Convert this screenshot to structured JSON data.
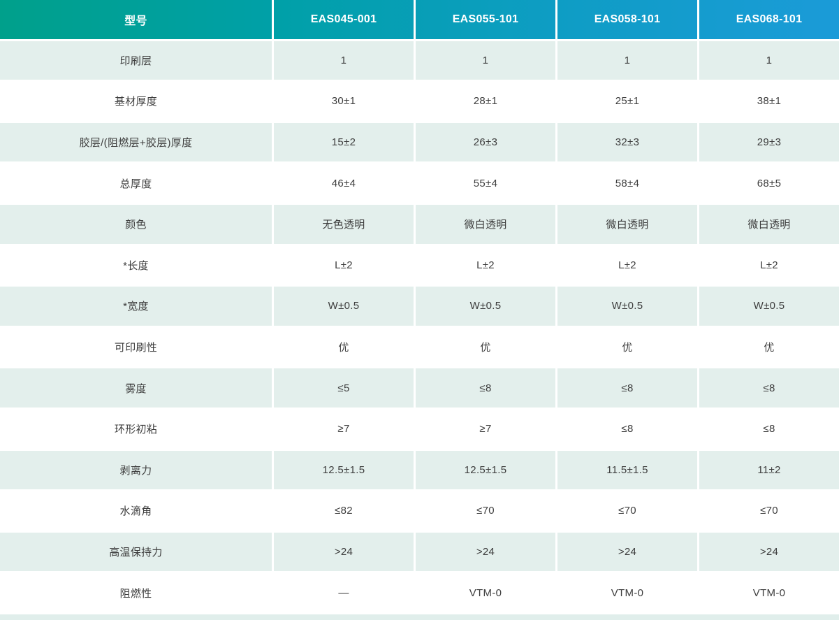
{
  "table": {
    "columns": [
      "型号",
      "EAS045-001",
      "EAS055-101",
      "EAS058-101",
      "EAS068-101"
    ],
    "rows": [
      {
        "label": "印刷层",
        "values": [
          "1",
          "1",
          "1",
          "1"
        ]
      },
      {
        "label": "基材厚度",
        "values": [
          "30±1",
          "28±1",
          "25±1",
          "38±1"
        ]
      },
      {
        "label": "胶层/(阻燃层+胶层)厚度",
        "values": [
          "15±2",
          "26±3",
          "32±3",
          "29±3"
        ]
      },
      {
        "label": "总厚度",
        "values": [
          "46±4",
          "55±4",
          "58±4",
          "68±5"
        ]
      },
      {
        "label": "颜色",
        "values": [
          "无色透明",
          "微白透明",
          "微白透明",
          "微白透明"
        ]
      },
      {
        "label": "*长度",
        "values": [
          "L±2",
          "L±2",
          "L±2",
          "L±2"
        ]
      },
      {
        "label": "*宽度",
        "values": [
          "W±0.5",
          "W±0.5",
          "W±0.5",
          "W±0.5"
        ]
      },
      {
        "label": "可印刷性",
        "values": [
          "优",
          "优",
          "优",
          "优"
        ]
      },
      {
        "label": "雾度",
        "values": [
          "≤5",
          "≤8",
          "≤8",
          "≤8"
        ]
      },
      {
        "label": "环形初粘",
        "values": [
          "≥7",
          "≥7",
          "≤8",
          "≤8"
        ]
      },
      {
        "label": "剥离力",
        "values": [
          "12.5±1.5",
          "12.5±1.5",
          "11.5±1.5",
          "11±2"
        ]
      },
      {
        "label": "水滴角",
        "values": [
          "≤82",
          "≤70",
          "≤70",
          "≤70"
        ]
      },
      {
        "label": "高温保持力",
        "values": [
          ">24",
          ">24",
          ">24",
          ">24"
        ]
      },
      {
        "label": "阻燃性",
        "values": [
          "—",
          "VTM-0",
          "VTM-0",
          "VTM-0"
        ]
      }
    ]
  },
  "colors": {
    "header_gradient_start": "#00a08b",
    "header_gradient_end": "#1b9bd8",
    "shaded_row_bg": "#e3efec",
    "bottom_strip_bg": "#e0eeeb",
    "body_text": "#3d3d3d",
    "header_text": "#ffffff"
  }
}
